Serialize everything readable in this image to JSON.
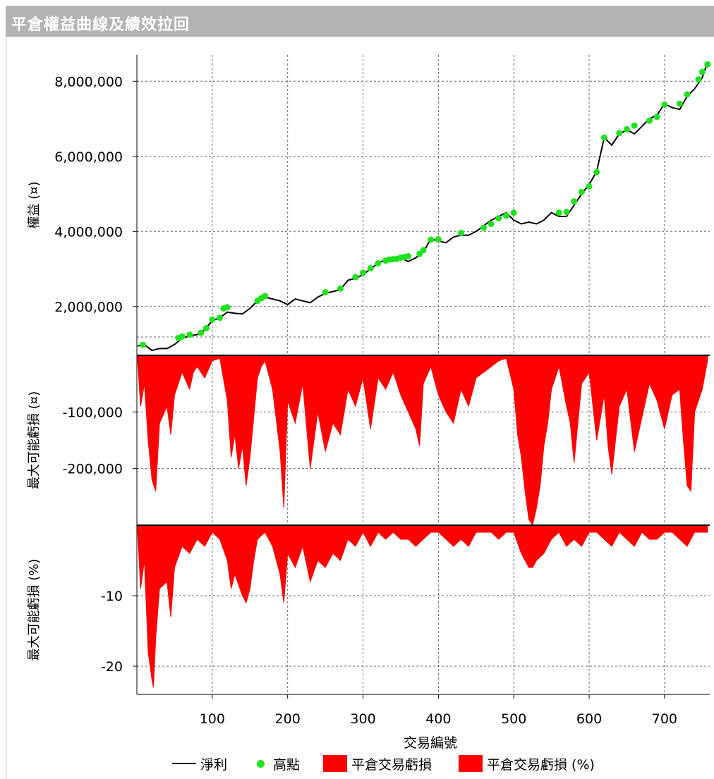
{
  "window": {
    "title": "平倉權益曲線及績效拉回"
  },
  "colors": {
    "line": "#000000",
    "peak": "#1fe21f",
    "drawdown": "#ff0000",
    "grid": "#666666"
  },
  "chart_data": [
    {
      "type": "line",
      "ylabel": "權益 (¤)",
      "ylim": [
        700000,
        8700000
      ],
      "yticks": [
        2000000,
        4000000,
        6000000,
        8000000
      ],
      "ytick_labels": [
        "2,000,000",
        "4,000,000",
        "6,000,000",
        "8,000,000"
      ],
      "series": [
        {
          "name": "淨利",
          "x": [
            1,
            10,
            20,
            30,
            40,
            50,
            60,
            70,
            80,
            90,
            100,
            110,
            120,
            130,
            140,
            150,
            160,
            170,
            180,
            190,
            200,
            210,
            220,
            230,
            240,
            250,
            260,
            270,
            280,
            290,
            300,
            310,
            320,
            330,
            340,
            350,
            360,
            370,
            380,
            390,
            400,
            410,
            420,
            430,
            440,
            450,
            460,
            470,
            480,
            490,
            500,
            510,
            520,
            530,
            540,
            550,
            560,
            570,
            580,
            590,
            600,
            610,
            620,
            630,
            640,
            650,
            660,
            670,
            680,
            690,
            700,
            710,
            720,
            730,
            740,
            750,
            757
          ],
          "y": [
            950000,
            980000,
            830000,
            880000,
            880000,
            990000,
            1150000,
            1220000,
            1250000,
            1380000,
            1620000,
            1700000,
            1850000,
            1820000,
            1800000,
            1950000,
            2150000,
            2250000,
            2200000,
            2150000,
            2050000,
            2200000,
            2150000,
            2100000,
            2250000,
            2350000,
            2400000,
            2450000,
            2700000,
            2750000,
            2850000,
            3000000,
            3150000,
            3250000,
            3200000,
            3300000,
            3200000,
            3300000,
            3450000,
            3800000,
            3750000,
            3700000,
            3850000,
            3900000,
            3900000,
            4000000,
            4150000,
            4300000,
            4400000,
            4500000,
            4300000,
            4200000,
            4250000,
            4200000,
            4300000,
            4500000,
            4400000,
            4400000,
            4700000,
            5000000,
            5250000,
            5600000,
            6500000,
            6300000,
            6600000,
            6700000,
            6600000,
            6800000,
            7000000,
            7100000,
            7400000,
            7300000,
            7250000,
            7600000,
            7800000,
            8100000,
            8500000
          ]
        },
        {
          "name": "高點",
          "x": [
            8,
            55,
            60,
            70,
            85,
            92,
            100,
            110,
            115,
            120,
            160,
            165,
            170,
            250,
            270,
            290,
            300,
            310,
            320,
            330,
            335,
            340,
            345,
            350,
            355,
            360,
            375,
            380,
            390,
            400,
            430,
            460,
            470,
            480,
            490,
            500,
            560,
            570,
            580,
            590,
            600,
            610,
            620,
            640,
            650,
            660,
            680,
            690,
            700,
            720,
            730,
            745,
            750,
            757
          ],
          "y": [
            980000,
            1160000,
            1200000,
            1250000,
            1300000,
            1420000,
            1650000,
            1700000,
            1950000,
            1980000,
            2150000,
            2220000,
            2280000,
            2380000,
            2480000,
            2780000,
            2900000,
            3020000,
            3150000,
            3220000,
            3250000,
            3260000,
            3270000,
            3300000,
            3320000,
            3340000,
            3400000,
            3500000,
            3780000,
            3790000,
            3960000,
            4100000,
            4200000,
            4350000,
            4420000,
            4500000,
            4500000,
            4520000,
            4800000,
            5050000,
            5200000,
            5580000,
            6500000,
            6620000,
            6720000,
            6820000,
            6950000,
            7050000,
            7380000,
            7400000,
            7650000,
            8050000,
            8250000,
            8450000
          ]
        }
      ]
    },
    {
      "type": "area",
      "ylabel": "最大可能虧損 (¤)",
      "ylim": [
        -300000,
        0
      ],
      "yticks": [
        -100000,
        -200000
      ],
      "ytick_labels": [
        "-100,000",
        "-200,000"
      ],
      "series": [
        {
          "name": "平倉交易虧損",
          "x": [
            1,
            5,
            10,
            15,
            20,
            25,
            30,
            40,
            45,
            50,
            60,
            70,
            75,
            80,
            90,
            100,
            110,
            120,
            125,
            130,
            135,
            140,
            145,
            150,
            155,
            160,
            165,
            170,
            180,
            190,
            195,
            200,
            210,
            220,
            230,
            240,
            250,
            260,
            270,
            280,
            290,
            300,
            310,
            320,
            330,
            340,
            350,
            360,
            370,
            375,
            380,
            390,
            400,
            410,
            420,
            430,
            440,
            450,
            460,
            470,
            480,
            490,
            500,
            505,
            510,
            515,
            520,
            525,
            530,
            535,
            540,
            545,
            550,
            560,
            570,
            575,
            580,
            590,
            600,
            610,
            615,
            620,
            625,
            630,
            640,
            650,
            660,
            670,
            680,
            690,
            700,
            710,
            720,
            725,
            730,
            735,
            740,
            750,
            757
          ],
          "y": [
            -10000,
            -90000,
            -50000,
            -150000,
            -220000,
            -240000,
            -120000,
            -90000,
            -140000,
            -70000,
            -30000,
            -60000,
            -30000,
            -20000,
            -40000,
            -10000,
            -5000,
            -80000,
            -180000,
            -140000,
            -200000,
            -160000,
            -230000,
            -180000,
            -110000,
            -40000,
            -20000,
            -10000,
            -60000,
            -170000,
            -270000,
            -80000,
            -120000,
            -50000,
            -200000,
            -100000,
            -170000,
            -120000,
            -140000,
            -60000,
            -90000,
            -40000,
            -130000,
            -40000,
            -60000,
            -30000,
            -70000,
            -100000,
            -130000,
            -160000,
            -50000,
            -20000,
            -70000,
            -100000,
            -120000,
            -60000,
            -90000,
            -40000,
            -30000,
            -20000,
            -10000,
            -5000,
            -60000,
            -140000,
            -180000,
            -240000,
            -290000,
            -300000,
            -270000,
            -230000,
            -160000,
            -120000,
            -60000,
            -20000,
            -90000,
            -120000,
            -190000,
            -50000,
            -30000,
            -150000,
            -110000,
            -70000,
            -160000,
            -210000,
            -90000,
            -60000,
            -170000,
            -110000,
            -50000,
            -80000,
            -130000,
            -70000,
            -60000,
            -150000,
            -230000,
            -240000,
            -100000,
            -60000,
            -10000
          ]
        }
      ]
    },
    {
      "type": "area",
      "xlabel": "交易編號",
      "ylabel": "最大可能虧損 (%)",
      "ylim": [
        -24,
        0
      ],
      "yticks": [
        -10,
        -20
      ],
      "ytick_labels": [
        "-10",
        "-20"
      ],
      "xlim": [
        0,
        760
      ],
      "xticks": [
        100,
        200,
        300,
        400,
        500,
        600,
        700
      ],
      "xtick_labels": [
        "100",
        "200",
        "300",
        "400",
        "500",
        "600",
        "700"
      ],
      "series": [
        {
          "name": "平倉交易虧損 (%)",
          "x": [
            1,
            5,
            10,
            15,
            20,
            22,
            25,
            30,
            40,
            45,
            50,
            60,
            70,
            80,
            90,
            100,
            110,
            120,
            125,
            130,
            140,
            145,
            150,
            155,
            160,
            170,
            180,
            190,
            195,
            200,
            210,
            220,
            230,
            240,
            250,
            260,
            270,
            280,
            290,
            300,
            310,
            320,
            330,
            340,
            350,
            360,
            370,
            380,
            390,
            400,
            410,
            420,
            430,
            440,
            450,
            460,
            470,
            480,
            490,
            500,
            510,
            515,
            520,
            525,
            530,
            540,
            550,
            560,
            570,
            580,
            590,
            600,
            610,
            620,
            630,
            640,
            650,
            660,
            670,
            680,
            690,
            700,
            710,
            720,
            730,
            740,
            750,
            757
          ],
          "y": [
            -1,
            -9,
            -5,
            -18,
            -22,
            -23,
            -16,
            -9,
            -8,
            -13,
            -6,
            -3,
            -4,
            -2,
            -3,
            -1,
            -2,
            -5,
            -9,
            -7,
            -10,
            -11,
            -9,
            -5,
            -2,
            -1,
            -3,
            -7,
            -11,
            -4,
            -6,
            -3,
            -8,
            -5,
            -6,
            -4,
            -5,
            -2,
            -3,
            -1,
            -3,
            -1,
            -2,
            -1,
            -2,
            -2,
            -3,
            -2,
            -1,
            -1,
            -2,
            -3,
            -2,
            -3,
            -1,
            -1,
            -1,
            -2,
            -1,
            -1,
            -4,
            -5,
            -6,
            -6,
            -5,
            -4,
            -2,
            -1,
            -3,
            -2,
            -3,
            -1,
            -1,
            -2,
            -3,
            -1,
            -2,
            -3,
            -1,
            -2,
            -2,
            -1,
            -1,
            -2,
            -3,
            -1,
            -1,
            -1
          ]
        }
      ]
    }
  ],
  "legend": {
    "items": [
      {
        "label": "淨利",
        "kind": "line"
      },
      {
        "label": "高點",
        "kind": "dot"
      },
      {
        "label": "平倉交易虧損",
        "kind": "box"
      },
      {
        "label": "平倉交易虧損 (%)",
        "kind": "box"
      }
    ]
  }
}
